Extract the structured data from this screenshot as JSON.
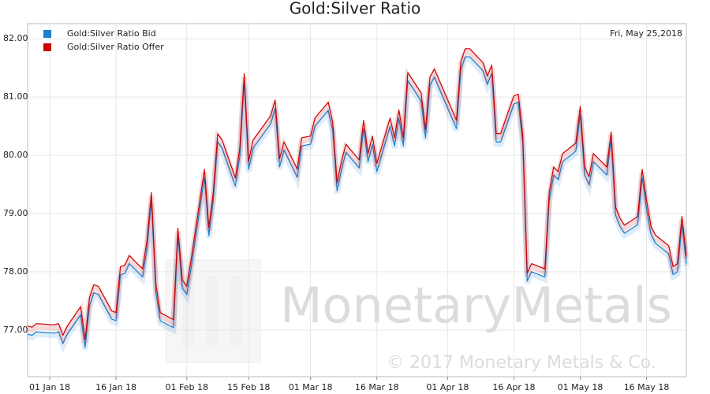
{
  "chart_data": {
    "type": "line",
    "title": "Gold:Silver Ratio",
    "annotation": "Fri, May 25,2018",
    "watermark": "MonetaryMetals",
    "copyright": "© 2017 Monetary Metals & Co.",
    "legend": "upper left",
    "grid": true,
    "x": [
      "2017-12-27",
      "2017-12-28",
      "2017-12-29",
      "2018-01-02",
      "2018-01-03",
      "2018-01-04",
      "2018-01-05",
      "2018-01-08",
      "2018-01-09",
      "2018-01-10",
      "2018-01-11",
      "2018-01-12",
      "2018-01-15",
      "2018-01-16",
      "2018-01-17",
      "2018-01-18",
      "2018-01-19",
      "2018-01-22",
      "2018-01-23",
      "2018-01-24",
      "2018-01-25",
      "2018-01-26",
      "2018-01-29",
      "2018-01-30",
      "2018-01-31",
      "2018-02-01",
      "2018-02-02",
      "2018-02-05",
      "2018-02-06",
      "2018-02-07",
      "2018-02-08",
      "2018-02-09",
      "2018-02-12",
      "2018-02-13",
      "2018-02-14",
      "2018-02-15",
      "2018-02-16",
      "2018-02-20",
      "2018-02-21",
      "2018-02-22",
      "2018-02-23",
      "2018-02-26",
      "2018-02-27",
      "2018-03-01",
      "2018-03-02",
      "2018-03-05",
      "2018-03-06",
      "2018-03-07",
      "2018-03-08",
      "2018-03-09",
      "2018-03-12",
      "2018-03-13",
      "2018-03-14",
      "2018-03-15",
      "2018-03-16",
      "2018-03-19",
      "2018-03-20",
      "2018-03-21",
      "2018-03-22",
      "2018-03-23",
      "2018-03-26",
      "2018-03-27",
      "2018-03-28",
      "2018-03-29",
      "2018-04-03",
      "2018-04-04",
      "2018-04-05",
      "2018-04-06",
      "2018-04-09",
      "2018-04-10",
      "2018-04-11",
      "2018-04-12",
      "2018-04-13",
      "2018-04-16",
      "2018-04-17",
      "2018-04-18",
      "2018-04-19",
      "2018-04-20",
      "2018-04-23",
      "2018-04-24",
      "2018-04-25",
      "2018-04-26",
      "2018-04-27",
      "2018-04-30",
      "2018-05-01",
      "2018-05-02",
      "2018-05-03",
      "2018-05-04",
      "2018-05-07",
      "2018-05-08",
      "2018-05-09",
      "2018-05-10",
      "2018-05-11",
      "2018-05-14",
      "2018-05-15",
      "2018-05-16",
      "2018-05-17",
      "2018-05-18",
      "2018-05-21",
      "2018-05-22",
      "2018-05-23",
      "2018-05-24",
      "2018-05-25"
    ],
    "series": [
      {
        "name": "Gold:Silver Ratio Bid",
        "color": "#1a7fd0",
        "values": [
          76.93,
          76.91,
          76.97,
          76.95,
          76.97,
          76.77,
          76.93,
          77.26,
          76.7,
          77.42,
          77.64,
          77.61,
          77.19,
          77.16,
          77.95,
          77.97,
          78.14,
          77.91,
          78.39,
          79.22,
          77.66,
          77.16,
          77.04,
          78.61,
          77.72,
          77.61,
          78.07,
          79.62,
          78.62,
          79.23,
          80.23,
          80.12,
          79.47,
          79.99,
          81.26,
          79.76,
          80.12,
          80.54,
          80.81,
          79.8,
          80.09,
          79.62,
          80.16,
          80.19,
          80.5,
          80.77,
          80.43,
          79.39,
          79.76,
          80.05,
          79.78,
          80.46,
          79.89,
          80.19,
          79.72,
          80.5,
          80.16,
          80.64,
          80.16,
          81.28,
          80.93,
          80.3,
          81.2,
          81.34,
          80.46,
          81.47,
          81.69,
          81.69,
          81.45,
          81.22,
          81.41,
          80.23,
          80.23,
          80.88,
          80.91,
          80.2,
          77.84,
          78.0,
          77.91,
          79.23,
          79.66,
          79.58,
          79.89,
          80.07,
          80.7,
          79.66,
          79.49,
          79.89,
          79.66,
          80.26,
          78.97,
          78.78,
          78.66,
          78.81,
          79.62,
          79.08,
          78.64,
          78.49,
          78.31,
          77.95,
          78.0,
          78.81,
          78.14
        ]
      },
      {
        "name": "Gold:Silver Ratio Offer",
        "color": "#cc0000",
        "values": [
          77.07,
          77.05,
          77.11,
          77.09,
          77.11,
          76.91,
          77.07,
          77.4,
          76.84,
          77.56,
          77.78,
          77.75,
          77.33,
          77.3,
          78.09,
          78.11,
          78.28,
          78.05,
          78.53,
          79.36,
          77.8,
          77.3,
          77.18,
          78.75,
          77.86,
          77.75,
          78.21,
          79.76,
          78.76,
          79.37,
          80.37,
          80.26,
          79.61,
          80.13,
          81.4,
          79.9,
          80.26,
          80.68,
          80.95,
          79.94,
          80.23,
          79.76,
          80.3,
          80.33,
          80.64,
          80.91,
          80.57,
          79.53,
          79.9,
          80.19,
          79.92,
          80.6,
          80.03,
          80.33,
          79.86,
          80.64,
          80.3,
          80.78,
          80.3,
          81.42,
          81.07,
          80.44,
          81.34,
          81.48,
          80.6,
          81.61,
          81.83,
          81.83,
          81.59,
          81.36,
          81.55,
          80.37,
          80.37,
          81.02,
          81.05,
          80.34,
          77.98,
          78.14,
          78.05,
          79.37,
          79.8,
          79.72,
          80.03,
          80.21,
          80.84,
          79.8,
          79.63,
          80.03,
          79.8,
          80.4,
          79.11,
          78.92,
          78.8,
          78.95,
          79.76,
          79.22,
          78.78,
          78.63,
          78.45,
          78.09,
          78.14,
          78.95,
          78.28
        ]
      }
    ],
    "xlim": [
      "2017-12-27",
      "2018-05-25"
    ],
    "xticks": [
      {
        "value": "2018-01-01",
        "label": "01 Jan 18"
      },
      {
        "value": "2018-01-16",
        "label": "16 Jan 18"
      },
      {
        "value": "2018-02-01",
        "label": "01 Feb 18"
      },
      {
        "value": "2018-02-15",
        "label": "15 Feb 18"
      },
      {
        "value": "2018-03-01",
        "label": "01 Mar 18"
      },
      {
        "value": "2018-03-16",
        "label": "16 Mar 18"
      },
      {
        "value": "2018-04-01",
        "label": "01 Apr 18"
      },
      {
        "value": "2018-04-16",
        "label": "16 Apr 18"
      },
      {
        "value": "2018-05-01",
        "label": "01 May 18"
      },
      {
        "value": "2018-05-16",
        "label": "16 May 18"
      }
    ],
    "ylim": [
      76.2,
      82.26
    ],
    "yticks": [
      {
        "value": 77,
        "label": "77.00"
      },
      {
        "value": 78,
        "label": "78.00"
      },
      {
        "value": 79,
        "label": "79.00"
      },
      {
        "value": 80,
        "label": "80.00"
      },
      {
        "value": 81,
        "label": "81.00"
      },
      {
        "value": 82,
        "label": "82.00"
      }
    ]
  }
}
